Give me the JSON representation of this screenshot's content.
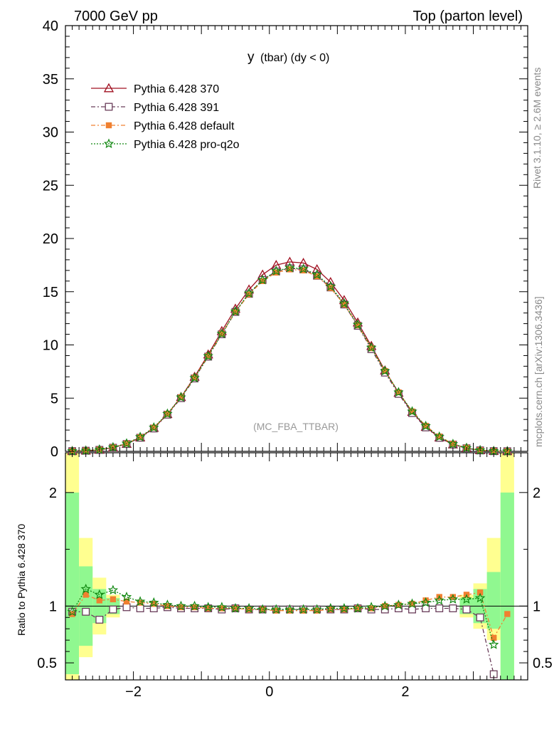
{
  "header": {
    "left": "7000 GeV pp",
    "right": "Top (parton level)"
  },
  "plot": {
    "title_main": "y",
    "title_sub": "(tbar) (dy < 0)",
    "watermark": "(MC_FBA_TTBAR)",
    "side_label_top": "Rivet 3.1.10, ≥ 2.6M events",
    "side_label_bottom": "mcplots.cern.ch [arXiv:1306.3436]",
    "ratio_ylabel": "Ratio to Pythia 6.428 370"
  },
  "chart_data": [
    {
      "type": "line",
      "panel": "main",
      "xlim": [
        -3.0,
        3.8
      ],
      "ylim": [
        0,
        40
      ],
      "yticks": [
        0,
        5,
        10,
        15,
        20,
        25,
        30,
        35,
        40
      ],
      "x": [
        -2.9,
        -2.7,
        -2.5,
        -2.3,
        -2.1,
        -1.9,
        -1.7,
        -1.5,
        -1.3,
        -1.1,
        -0.9,
        -0.7,
        -0.5,
        -0.3,
        -0.1,
        0.1,
        0.3,
        0.5,
        0.7,
        0.9,
        1.1,
        1.3,
        1.5,
        1.7,
        1.9,
        2.1,
        2.3,
        2.5,
        2.7,
        2.9,
        3.1,
        3.3,
        3.5
      ],
      "series": [
        {
          "name": "Pythia 6.428 370",
          "color": "#a01020",
          "marker": "triangle-open",
          "dash": "",
          "values": [
            0.02,
            0.06,
            0.15,
            0.35,
            0.7,
            1.3,
            2.2,
            3.5,
            5.1,
            7.0,
            9.1,
            11.3,
            13.4,
            15.2,
            16.6,
            17.5,
            17.8,
            17.7,
            17.1,
            15.9,
            14.2,
            12.1,
            9.9,
            7.6,
            5.5,
            3.7,
            2.3,
            1.3,
            0.65,
            0.3,
            0.1,
            0.03,
            0.01
          ]
        },
        {
          "name": "Pythia 6.428 391",
          "color": "#6a3d5a",
          "marker": "square-open",
          "dash": "6,3,2,3",
          "values": [
            0.02,
            0.06,
            0.14,
            0.34,
            0.69,
            1.28,
            2.15,
            3.45,
            5.0,
            6.85,
            8.9,
            11.0,
            13.1,
            14.8,
            16.1,
            16.9,
            17.2,
            17.1,
            16.5,
            15.4,
            13.8,
            11.8,
            9.6,
            7.4,
            5.4,
            3.6,
            2.25,
            1.27,
            0.64,
            0.29,
            0.09,
            0.02,
            0.01
          ]
        },
        {
          "name": "Pythia 6.428 default",
          "color": "#f08030",
          "marker": "square-filled",
          "dash": "6,3,2,3",
          "values": [
            0.02,
            0.07,
            0.16,
            0.37,
            0.73,
            1.34,
            2.23,
            3.52,
            5.08,
            6.92,
            8.95,
            11.05,
            13.1,
            14.75,
            16.0,
            16.8,
            17.1,
            17.0,
            16.45,
            15.35,
            13.8,
            11.85,
            9.7,
            7.55,
            5.55,
            3.75,
            2.4,
            1.4,
            0.7,
            0.33,
            0.11,
            0.03,
            0.01
          ]
        },
        {
          "name": "Pythia 6.428 pro-q2o",
          "color": "#118811",
          "marker": "star",
          "dash": "2,2",
          "values": [
            0.02,
            0.07,
            0.17,
            0.38,
            0.74,
            1.35,
            2.24,
            3.53,
            5.08,
            6.9,
            8.95,
            11.05,
            13.15,
            14.85,
            16.1,
            16.95,
            17.25,
            17.15,
            16.6,
            15.5,
            13.9,
            11.9,
            9.75,
            7.55,
            5.55,
            3.75,
            2.38,
            1.38,
            0.69,
            0.32,
            0.1,
            0.03,
            0.01
          ]
        }
      ]
    },
    {
      "type": "line",
      "panel": "ratio",
      "xlim": [
        -3.0,
        3.8
      ],
      "ylim": [
        0.35,
        2.35
      ],
      "yticks": [
        0.5,
        1,
        2
      ],
      "xticks": [
        -2,
        0,
        2
      ],
      "x": [
        -2.9,
        -2.7,
        -2.5,
        -2.3,
        -2.1,
        -1.9,
        -1.7,
        -1.5,
        -1.3,
        -1.1,
        -0.9,
        -0.7,
        -0.5,
        -0.3,
        -0.1,
        0.1,
        0.3,
        0.5,
        0.7,
        0.9,
        1.1,
        1.3,
        1.5,
        1.7,
        1.9,
        2.1,
        2.3,
        2.5,
        2.7,
        2.9,
        3.1,
        3.3,
        3.5
      ],
      "series": [
        {
          "name": "Pythia 6.428 391",
          "color": "#6a3d5a",
          "marker": "square-open",
          "dash": "6,3,2,3",
          "values": [
            0.95,
            0.95,
            0.88,
            0.97,
            0.99,
            0.98,
            0.98,
            0.99,
            0.98,
            0.98,
            0.98,
            0.97,
            0.98,
            0.97,
            0.97,
            0.97,
            0.97,
            0.97,
            0.97,
            0.97,
            0.97,
            0.98,
            0.97,
            0.97,
            0.98,
            0.97,
            0.98,
            0.98,
            0.98,
            0.97,
            0.9,
            0.4,
            null
          ]
        },
        {
          "name": "Pythia 6.428 default",
          "color": "#f08030",
          "marker": "square-filled",
          "dash": "6,3,2,3",
          "values": [
            0.93,
            1.1,
            1.05,
            1.06,
            1.04,
            1.03,
            1.02,
            1.0,
            0.99,
            0.99,
            0.98,
            0.98,
            0.98,
            0.97,
            0.97,
            0.96,
            0.96,
            0.96,
            0.96,
            0.97,
            0.97,
            0.98,
            0.98,
            1.0,
            1.01,
            1.02,
            1.05,
            1.08,
            1.08,
            1.1,
            1.12,
            0.72,
            0.93
          ]
        },
        {
          "name": "Pythia 6.428 pro-q2o",
          "color": "#118811",
          "marker": "star",
          "dash": "2,2",
          "values": [
            0.95,
            1.15,
            1.1,
            1.14,
            1.08,
            1.04,
            1.03,
            1.01,
            1.0,
            1.0,
            0.99,
            0.99,
            0.98,
            0.98,
            0.97,
            0.97,
            0.97,
            0.97,
            0.97,
            0.98,
            0.98,
            0.98,
            0.99,
            1.0,
            1.01,
            1.02,
            1.03,
            1.05,
            1.06,
            1.06,
            1.07,
            0.66,
            null
          ]
        }
      ],
      "band_x": [
        -2.9,
        -2.7,
        -2.5,
        -2.3,
        2.9,
        3.1,
        3.3,
        3.5
      ],
      "band_inner": [
        [
          0.4,
          2.0
        ],
        [
          0.65,
          1.35
        ],
        [
          0.85,
          1.15
        ],
        [
          0.93,
          1.07
        ],
        [
          0.93,
          1.07
        ],
        [
          0.85,
          1.15
        ],
        [
          0.8,
          1.3
        ],
        [
          0.35,
          2.0
        ]
      ],
      "band_outer": [
        [
          0.35,
          2.35
        ],
        [
          0.55,
          1.6
        ],
        [
          0.75,
          1.25
        ],
        [
          0.9,
          1.1
        ],
        [
          0.9,
          1.1
        ],
        [
          0.8,
          1.2
        ],
        [
          0.7,
          1.6
        ],
        [
          0.35,
          2.35
        ]
      ]
    }
  ]
}
